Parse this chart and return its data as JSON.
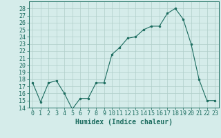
{
  "x": [
    0,
    1,
    2,
    3,
    4,
    5,
    6,
    7,
    8,
    9,
    10,
    11,
    12,
    13,
    14,
    15,
    16,
    17,
    18,
    19,
    20,
    21,
    22,
    23
  ],
  "y": [
    17.5,
    14.8,
    17.5,
    17.8,
    16.0,
    13.8,
    15.3,
    15.3,
    17.5,
    17.5,
    21.5,
    22.5,
    23.8,
    24.0,
    25.0,
    25.5,
    25.5,
    27.3,
    28.0,
    26.5,
    23.0,
    18.0,
    15.0,
    15.0
  ],
  "line_color": "#1a6b5e",
  "marker": "o",
  "marker_size": 2,
  "bg_color": "#d5ecea",
  "grid_color": "#b0ceca",
  "tick_color": "#1a6b5e",
  "label_color": "#1a6b5e",
  "xlabel": "Humidex (Indice chaleur)",
  "ylim": [
    14,
    29
  ],
  "xlim": [
    -0.5,
    23.5
  ],
  "yticks": [
    14,
    15,
    16,
    17,
    18,
    19,
    20,
    21,
    22,
    23,
    24,
    25,
    26,
    27,
    28
  ],
  "xticks": [
    0,
    1,
    2,
    3,
    4,
    5,
    6,
    7,
    8,
    9,
    10,
    11,
    12,
    13,
    14,
    15,
    16,
    17,
    18,
    19,
    20,
    21,
    22,
    23
  ],
  "xlabel_fontsize": 7,
  "tick_fontsize": 6
}
